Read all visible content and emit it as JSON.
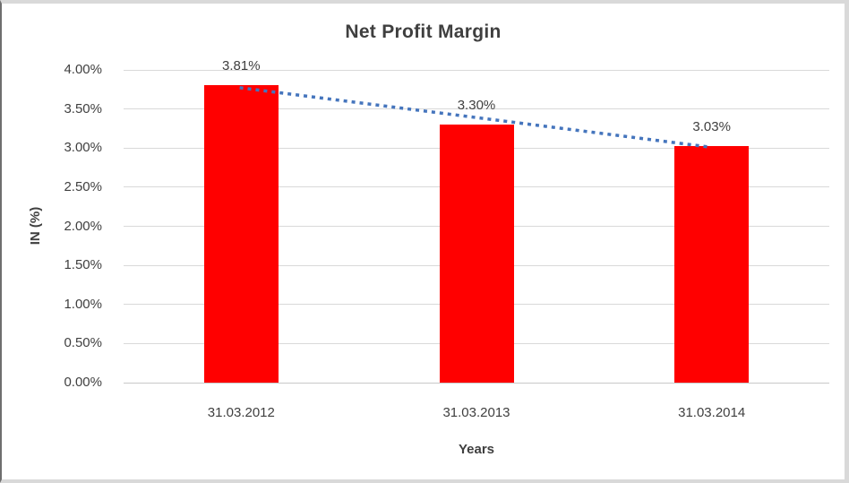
{
  "chart_data": {
    "type": "bar",
    "title": "Net Profit Margin",
    "xlabel": "Years",
    "ylabel": "IN (%)",
    "categories": [
      "31.03.2012",
      "31.03.2013",
      "31.03.2014"
    ],
    "values": [
      3.81,
      3.3,
      3.03
    ],
    "data_labels": [
      "3.81%",
      "3.30%",
      "3.03%"
    ],
    "y_tick_labels": [
      "0.00%",
      "0.50%",
      "1.00%",
      "1.50%",
      "2.00%",
      "2.50%",
      "3.00%",
      "3.50%",
      "4.00%"
    ],
    "y_tick_values": [
      0.0,
      0.5,
      1.0,
      1.5,
      2.0,
      2.5,
      3.0,
      3.5,
      4.0
    ],
    "ylim": [
      0.0,
      4.0
    ],
    "grid": true,
    "legend": "none",
    "bar_color": "#ff0000",
    "text_color": "#3f3f3f",
    "gridline_color": "#d9d9d9",
    "trendline": {
      "style": "dotted",
      "color": "#4575bd",
      "start_value": 3.77,
      "end_value": 3.01
    }
  }
}
